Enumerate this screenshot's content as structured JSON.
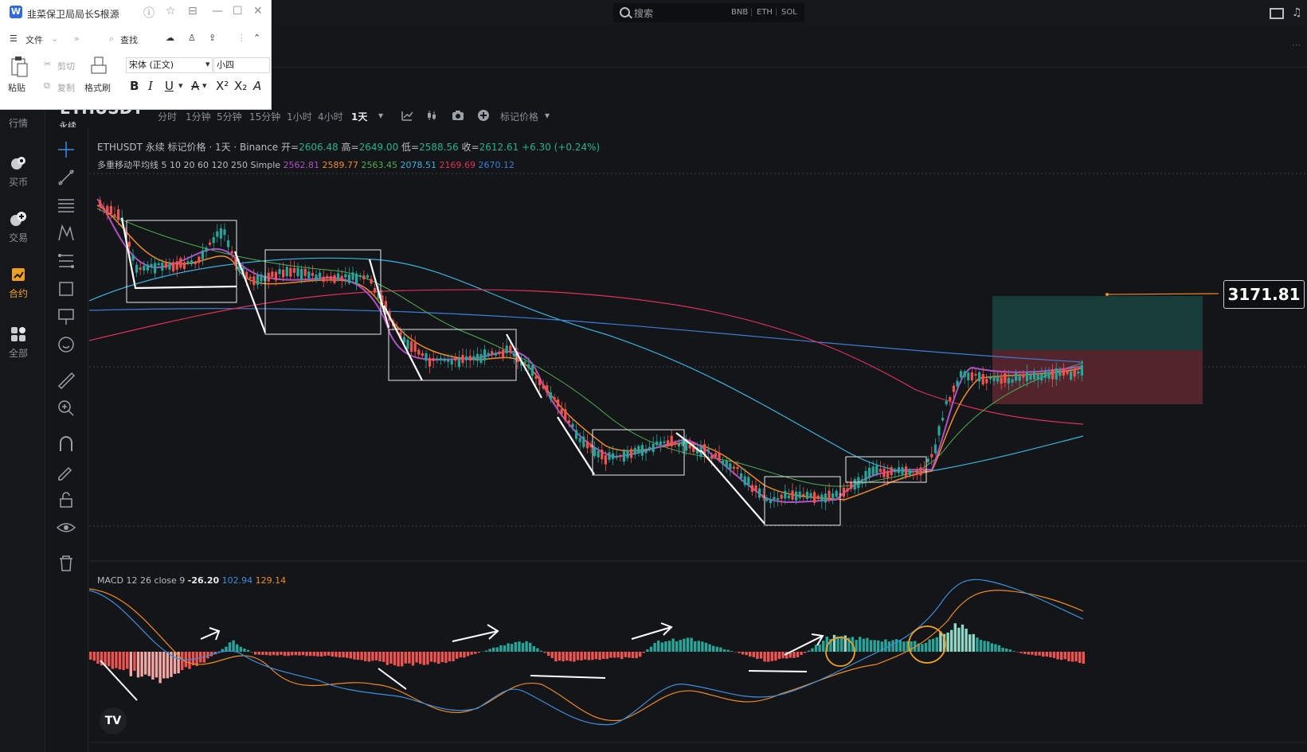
{
  "topbar": {
    "search_placeholder": "搜索",
    "coins": [
      "BNB",
      "ETH",
      "SOL"
    ]
  },
  "word": {
    "title": "韭菜保卫局局长S根源",
    "menu_file": "文件",
    "find": "查找",
    "paste": "粘贴",
    "cut": "剪切",
    "copy": "复制",
    "format_painter": "格式刷",
    "font_name": "宋体 (正文)",
    "font_size": "小四"
  },
  "sidebar": {
    "items": [
      {
        "label": "行情",
        "icon": "market-icon"
      },
      {
        "label": "买币",
        "icon": "buy-coin-icon"
      },
      {
        "label": "交易",
        "icon": "trade-icon"
      },
      {
        "label": "合约",
        "icon": "contract-icon"
      },
      {
        "label": "全部",
        "icon": "all-apps-icon"
      }
    ],
    "active_color": "#f0a020"
  },
  "chart_header": {
    "symbol": "ETHUSDT",
    "perpetual": "永续",
    "timeframes": [
      "分时",
      "1分钟",
      "5分钟",
      "15分钟",
      "1小时",
      "4小时",
      "1天"
    ],
    "active_timeframe": "1天",
    "price_type": "标记价格"
  },
  "legend": {
    "title": "ETHUSDT 永续 标记价格 · 1天 · Binance",
    "open_label": "开=",
    "open": "2606.48",
    "high_label": "高=",
    "high": "2649.00",
    "low_label": "低=",
    "low": "2588.56",
    "close_label": "收=",
    "close": "2612.61",
    "change": "+6.30 (+0.24%)",
    "ma_label": "多重移动平均线 5 10 20 60 120 250 Simple",
    "ma_values": [
      {
        "value": "2562.81",
        "color": "#b04fc8"
      },
      {
        "value": "2589.77",
        "color": "#f08a24"
      },
      {
        "value": "2563.45",
        "color": "#4caf50"
      },
      {
        "value": "2078.51",
        "color": "#38b3e0"
      },
      {
        "value": "2169.69",
        "color": "#e0305a"
      },
      {
        "value": "2670.12",
        "color": "#3b7fd8"
      }
    ],
    "macd_label": "MACD 12 26 close 9",
    "macd_values": [
      {
        "value": "-26.20",
        "color": "#e8e9eb"
      },
      {
        "value": "102.94",
        "color": "#3b8fe0"
      },
      {
        "value": "129.14",
        "color": "#f08a24"
      }
    ]
  },
  "price_label": "3171.81",
  "colors": {
    "up": "#26a69a",
    "down": "#ef5350",
    "background": "#141518"
  }
}
